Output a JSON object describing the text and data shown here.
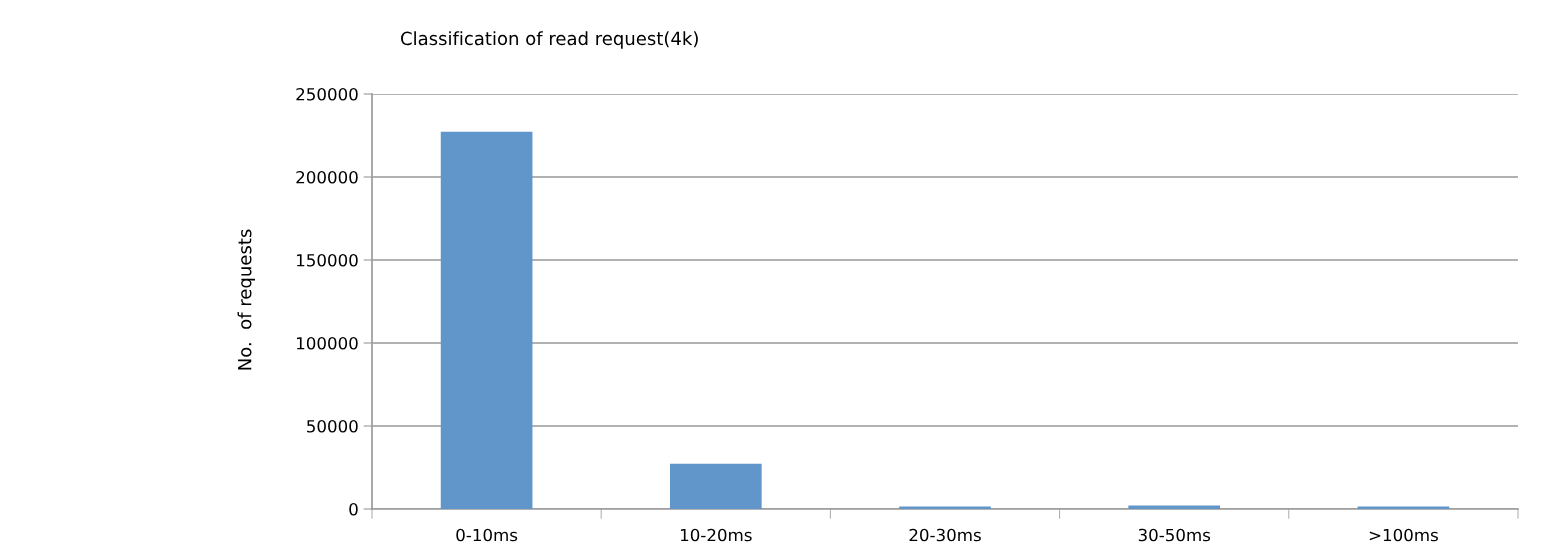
{
  "chart_data": {
    "type": "bar",
    "title": "Classification of read request(4k)",
    "ylabel": "No.  of requests",
    "categories": [
      "0-10ms",
      "10-20ms",
      "20-30ms",
      "30-50ms",
      ">100ms"
    ],
    "values": [
      227300,
      27300,
      1500,
      2100,
      1500
    ],
    "color": "#6096c9",
    "ylim": [
      0,
      250000
    ],
    "yticks": [
      0,
      50000,
      100000,
      150000,
      200000,
      250000
    ],
    "grid": "y"
  }
}
